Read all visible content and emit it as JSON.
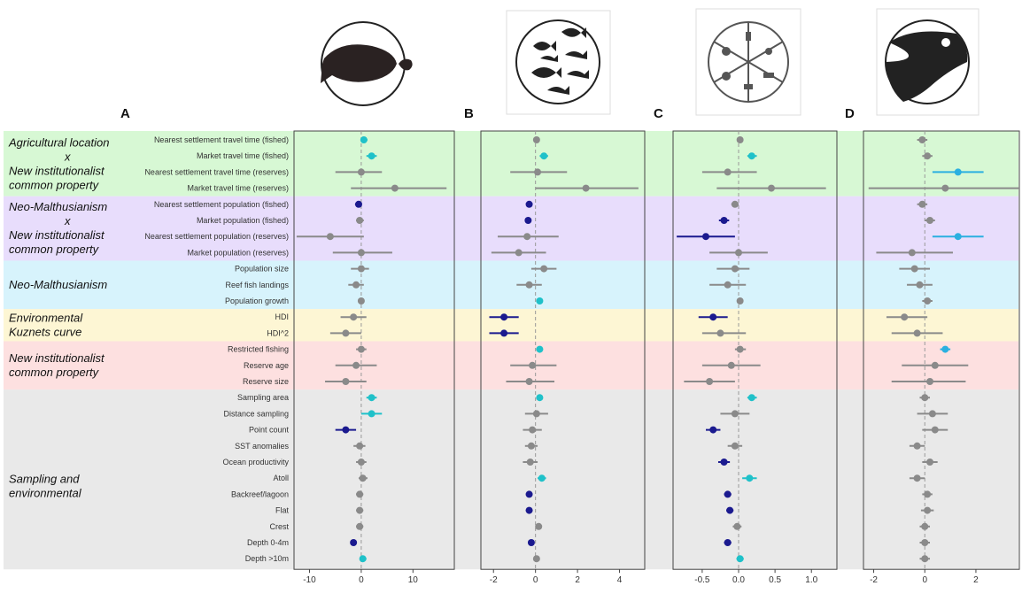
{
  "colors": {
    "sig_pos": "#1fc1c9",
    "sig_pos_alt": "#2bb0e0",
    "sig_neg": "#1b1a8f",
    "nonsig": "#8a8a8a",
    "band_green": "#d7f8d4",
    "band_purple": "#e8ddfc",
    "band_cyan": "#d7f3fc",
    "band_yellow": "#fdf6d4",
    "band_red": "#fde0e0",
    "band_gray": "#e9e9e9"
  },
  "groups": [
    {
      "label_lines": [
        "Agricultural location",
        "x",
        "New institutionalist",
        "common property"
      ],
      "band": "band_green",
      "rows": [
        0,
        3
      ]
    },
    {
      "label_lines": [
        "Neo-Malthusianism",
        "x",
        "New institutionalist",
        "common property"
      ],
      "band": "band_purple",
      "rows": [
        4,
        7
      ]
    },
    {
      "label_lines": [
        "Neo-Malthusianism"
      ],
      "band": "band_cyan",
      "rows": [
        8,
        10
      ]
    },
    {
      "label_lines": [
        "Environmental",
        "Kuznets curve"
      ],
      "band": "band_yellow",
      "rows": [
        11,
        12
      ]
    },
    {
      "label_lines": [
        "New institutionalist",
        "common property"
      ],
      "band": "band_red",
      "rows": [
        13,
        15
      ]
    },
    {
      "label_lines": [
        "Sampling and",
        "environmental"
      ],
      "band": "band_gray",
      "rows": [
        16,
        27
      ]
    }
  ],
  "variables": [
    "Nearest settlement travel time (fished)",
    "Market travel time (fished)",
    "Nearest settlement travel time (reserves)",
    "Market travel time (reserves)",
    "Nearest settlement population (fished)",
    "Market population (fished)",
    "Nearest settlement population (reserves)",
    "Market population (reserves)",
    "Population size",
    "Reef fish landings",
    "Population growth",
    "HDI",
    "HDI^2",
    "Restricted fishing",
    "Reserve age",
    "Reserve size",
    "Sampling area",
    "Distance sampling",
    "Point count",
    "SST anomalies",
    "Ocean productivity",
    "Atoll",
    "Backreef/lagoon",
    "Flat",
    "Crest",
    "Depth 0-4m",
    "Depth >10m"
  ],
  "chart_data": [
    {
      "panel": "A",
      "type": "forest",
      "xlim": [
        -13,
        18
      ],
      "xticks": [
        -10,
        0,
        10
      ],
      "xtick_labels": [
        "-10",
        "0",
        "10"
      ],
      "estimates": [
        0.5,
        2,
        0,
        6.5,
        -0.5,
        -0.3,
        -6,
        0,
        0,
        -1,
        0,
        -1.5,
        -3,
        0,
        -1,
        -3,
        2,
        2,
        -3,
        -0.3,
        0,
        0.3,
        -0.3,
        -0.3,
        -0.3,
        -1.5,
        0.3
      ],
      "lower": [
        0.0,
        1,
        -5,
        -2,
        -1.2,
        -1,
        -12.5,
        -5.5,
        -2,
        -2.5,
        -0.5,
        -4,
        -6,
        -1,
        -5,
        -7,
        1,
        0,
        -5,
        -1.5,
        -1,
        -0.5,
        -1,
        -1,
        -1,
        -2,
        -0.3
      ],
      "upper": [
        1.2,
        3,
        4,
        16.5,
        0,
        0.5,
        0.5,
        6,
        1.5,
        0.5,
        0.5,
        1,
        0,
        1,
        3,
        1,
        3,
        4,
        -1,
        0.8,
        1,
        1.2,
        0.4,
        0.4,
        0.4,
        -1,
        1
      ],
      "signif": [
        "pos",
        "pos",
        "ns",
        "ns",
        "neg",
        "ns",
        "ns",
        "ns",
        "ns",
        "ns",
        "ns",
        "ns",
        "ns",
        "ns",
        "ns",
        "ns",
        "pos",
        "pos",
        "neg",
        "ns",
        "ns",
        "ns",
        "ns",
        "ns",
        "ns",
        "neg",
        "pos"
      ]
    },
    {
      "panel": "B",
      "type": "forest",
      "xlim": [
        -2.6,
        5.2
      ],
      "xticks": [
        -2,
        0,
        2,
        4
      ],
      "xtick_labels": [
        "-2",
        "0",
        "2",
        "4"
      ],
      "estimates": [
        0.05,
        0.4,
        0.1,
        2.4,
        -0.3,
        -0.35,
        -0.4,
        -0.8,
        0.4,
        -0.3,
        0.2,
        -1.5,
        -1.5,
        0.2,
        -0.15,
        -0.3,
        0.2,
        0.05,
        -0.15,
        -0.2,
        -0.25,
        0.3,
        -0.3,
        -0.3,
        0.15,
        -0.2,
        0.05
      ],
      "lower": [
        -0.1,
        0.2,
        -1.2,
        0,
        -0.45,
        -0.5,
        -1.8,
        -2.1,
        -0.2,
        -0.9,
        0.05,
        -2.2,
        -2.2,
        0.05,
        -1.2,
        -1.4,
        0.05,
        -0.5,
        -0.6,
        -0.5,
        -0.6,
        0.1,
        -0.45,
        -0.45,
        0,
        -0.35,
        -0.05
      ],
      "upper": [
        0.2,
        0.6,
        1.5,
        4.9,
        -0.15,
        -0.2,
        1.1,
        0.5,
        1.0,
        0.3,
        0.35,
        -0.8,
        -0.8,
        0.35,
        1.0,
        0.9,
        0.35,
        0.6,
        0.3,
        0.1,
        0.1,
        0.5,
        -0.15,
        -0.15,
        0.3,
        -0.05,
        0.15
      ]
    },
    {
      "panel": "C",
      "type": "forest",
      "xlim": [
        -0.9,
        1.35
      ],
      "xticks": [
        -0.5,
        0.0,
        0.5,
        1.0
      ],
      "xtick_labels": [
        "-0.5",
        "0.0",
        "0.5",
        "1.0"
      ],
      "estimates": [
        0.02,
        0.18,
        -0.15,
        0.45,
        -0.05,
        -0.2,
        -0.45,
        0,
        -0.05,
        -0.15,
        0.02,
        -0.35,
        -0.25,
        0.02,
        -0.1,
        -0.4,
        0.18,
        -0.05,
        -0.35,
        -0.05,
        -0.2,
        0.15,
        -0.15,
        -0.12,
        -0.02,
        -0.15,
        0.02
      ],
      "lower": [
        -0.02,
        0.12,
        -0.5,
        -0.3,
        -0.1,
        -0.27,
        -0.85,
        -0.4,
        -0.3,
        -0.4,
        -0.02,
        -0.55,
        -0.5,
        -0.05,
        -0.5,
        -0.75,
        0.12,
        -0.25,
        -0.45,
        -0.15,
        -0.28,
        0.05,
        -0.2,
        -0.17,
        -0.08,
        -0.2,
        -0.03
      ],
      "upper": [
        0.06,
        0.25,
        0.25,
        1.2,
        0,
        -0.13,
        -0.05,
        0.4,
        0.15,
        0.1,
        0.06,
        -0.15,
        0.1,
        0.1,
        0.3,
        -0.05,
        0.25,
        0.15,
        -0.25,
        0.05,
        -0.12,
        0.25,
        -0.1,
        -0.07,
        0.04,
        -0.1,
        0.07
      ],
      "signif": [
        "ns",
        "pos",
        "ns",
        "ns",
        "ns",
        "neg",
        "neg",
        "ns",
        "ns",
        "ns",
        "ns",
        "neg",
        "ns",
        "ns",
        "ns",
        "ns",
        "pos",
        "ns",
        "neg",
        "ns",
        "neg",
        "pos",
        "neg",
        "neg",
        "ns",
        "neg",
        "pos"
      ]
    },
    {
      "panel": "D",
      "type": "forest",
      "xlim": [
        -2.4,
        3.7
      ],
      "xticks": [
        -2,
        0,
        2
      ],
      "xtick_labels": [
        "-2",
        "0",
        "2"
      ],
      "estimates": [
        -0.1,
        0.1,
        1.3,
        0.8,
        -0.1,
        0.2,
        1.3,
        -0.5,
        -0.4,
        -0.2,
        0.1,
        -0.8,
        -0.3,
        0.8,
        0.4,
        0.2,
        0,
        0.3,
        0.4,
        -0.3,
        0.2,
        -0.3,
        0.1,
        0.1,
        0,
        0,
        0
      ],
      "lower": [
        -0.3,
        -0.1,
        0.3,
        -2.2,
        -0.3,
        0,
        0.3,
        -1.9,
        -1.0,
        -0.7,
        -0.1,
        -1.5,
        -1.3,
        0.6,
        -0.9,
        -1.3,
        -0.2,
        -0.3,
        -0.1,
        -0.6,
        -0.1,
        -0.6,
        -0.1,
        -0.15,
        -0.2,
        -0.2,
        -0.2
      ],
      "upper": [
        0.1,
        0.3,
        2.3,
        3.7,
        0.1,
        0.4,
        2.3,
        1.1,
        0.2,
        0.3,
        0.3,
        0.1,
        0.7,
        1.0,
        1.7,
        1.6,
        0.2,
        0.9,
        0.9,
        0.0,
        0.5,
        0,
        0.3,
        0.35,
        0.2,
        0.2,
        0.2
      ],
      "signif": [
        "ns",
        "ns",
        "pos2",
        "ns",
        "ns",
        "ns",
        "pos2",
        "ns",
        "ns",
        "ns",
        "ns",
        "ns",
        "ns",
        "pos2",
        "ns",
        "ns",
        "ns",
        "ns",
        "ns",
        "ns",
        "ns",
        "ns",
        "ns",
        "ns",
        "ns",
        "ns",
        "ns"
      ]
    }
  ]
}
